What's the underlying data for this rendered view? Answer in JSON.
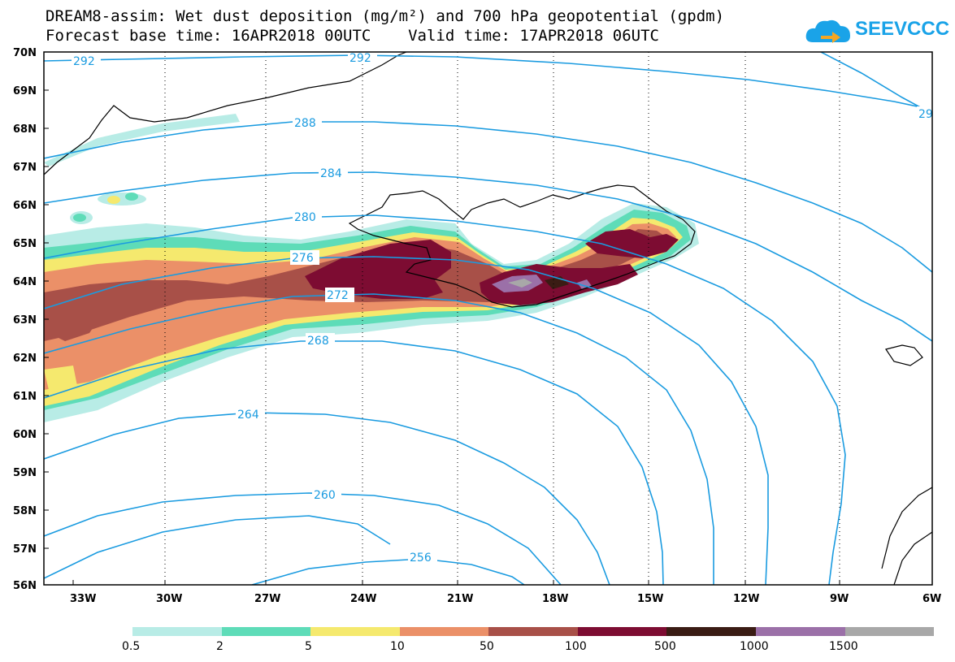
{
  "header": {
    "title_line1": "DREAM8-assim: Wet dust deposition (mg/m²) and 700 hPa geopotential (gpdm)",
    "title_line2": "Forecast base time: 16APR2018 00UTC    Valid time: 17APR2018 06UTC",
    "logo_text": "SEEVCCC",
    "logo_icon": "cloud-arrow-icon",
    "logo_color": "#1aa3e8"
  },
  "map": {
    "lat_labels": [
      "70N",
      "69N",
      "68N",
      "67N",
      "66N",
      "65N",
      "64N",
      "63N",
      "62N",
      "61N",
      "60N",
      "59N",
      "58N",
      "57N",
      "56N"
    ],
    "lon_labels": [
      "33W",
      "30W",
      "27W",
      "24W",
      "21W",
      "18W",
      "15W",
      "12W",
      "9W",
      "6W"
    ],
    "contour_labels": [
      "292",
      "292",
      "29",
      "288",
      "284",
      "280",
      "276",
      "272",
      "268",
      "264",
      "260",
      "256"
    ],
    "contour_color": "#1a9be0"
  },
  "legend": {
    "colors": [
      "#b8ece6",
      "#5edcb8",
      "#f5e96e",
      "#eb9068",
      "#a85048",
      "#7d0c32",
      "#3a1c14",
      "#9b70a8",
      "#a8a8a8"
    ],
    "labels": [
      "0.5",
      "2",
      "5",
      "10",
      "50",
      "100",
      "500",
      "1000",
      "1500"
    ]
  }
}
